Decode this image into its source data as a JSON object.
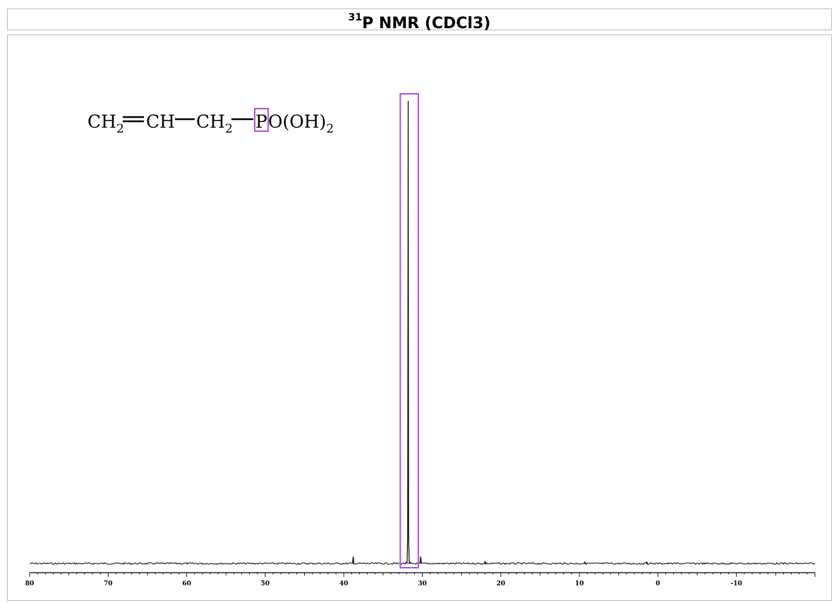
{
  "title": {
    "superscript": "31",
    "text": "P NMR (CDCl3)"
  },
  "structure": {
    "parts": [
      "CH",
      "2",
      "CH",
      "CH",
      "2",
      "P",
      "O(OH)",
      "2"
    ],
    "highlighted_atom": "P",
    "highlight_color": "#b04ee6"
  },
  "chart_data": {
    "type": "line",
    "title": "31P NMR (CDCl3)",
    "xlabel": "",
    "ylabel": "",
    "x_reversed": true,
    "xlim": [
      80,
      -20
    ],
    "x_ticks": [
      80,
      70,
      60,
      50,
      40,
      30,
      20,
      10,
      0,
      -10
    ],
    "x_tick_labels": [
      "80",
      "70",
      "60",
      "50",
      "40",
      "30",
      "20",
      "10",
      "0",
      "-10"
    ],
    "peaks": [
      {
        "shift": 31.8,
        "relative_intensity": 1.0,
        "highlighted": true
      },
      {
        "shift": 38.8,
        "relative_intensity": 0.015
      },
      {
        "shift": 30.2,
        "relative_intensity": 0.015
      },
      {
        "shift": 22.0,
        "relative_intensity": 0.004
      },
      {
        "shift": 9.3,
        "relative_intensity": 0.003
      },
      {
        "shift": 1.4,
        "relative_intensity": 0.003
      }
    ],
    "highlight_region": [
      32.8,
      30.5
    ],
    "line_color": "#000000",
    "highlight_color": "#b04ee6",
    "grid": false
  }
}
